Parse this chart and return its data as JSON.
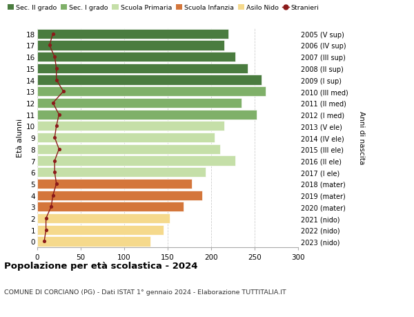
{
  "ages": [
    18,
    17,
    16,
    15,
    14,
    13,
    12,
    11,
    10,
    9,
    8,
    7,
    6,
    5,
    4,
    3,
    2,
    1,
    0
  ],
  "bar_values": [
    220,
    215,
    228,
    242,
    258,
    263,
    235,
    252,
    215,
    204,
    210,
    228,
    194,
    178,
    190,
    168,
    152,
    145,
    130
  ],
  "stranieri_values": [
    18,
    14,
    20,
    22,
    22,
    30,
    18,
    25,
    22,
    20,
    25,
    20,
    20,
    22,
    18,
    16,
    10,
    10,
    8
  ],
  "right_labels": [
    "2005 (V sup)",
    "2006 (IV sup)",
    "2007 (III sup)",
    "2008 (II sup)",
    "2009 (I sup)",
    "2010 (III med)",
    "2011 (II med)",
    "2012 (I med)",
    "2013 (V ele)",
    "2014 (IV ele)",
    "2015 (III ele)",
    "2016 (II ele)",
    "2017 (I ele)",
    "2018 (mater)",
    "2019 (mater)",
    "2020 (mater)",
    "2021 (nido)",
    "2022 (nido)",
    "2023 (nido)"
  ],
  "bar_colors": [
    "#4a7c3f",
    "#4a7c3f",
    "#4a7c3f",
    "#4a7c3f",
    "#4a7c3f",
    "#7fb069",
    "#7fb069",
    "#7fb069",
    "#c5dfa8",
    "#c5dfa8",
    "#c5dfa8",
    "#c5dfa8",
    "#c5dfa8",
    "#d4763b",
    "#d4763b",
    "#d4763b",
    "#f5d98c",
    "#f5d98c",
    "#f5d98c"
  ],
  "stranieri_color": "#8b1a1a",
  "legend_items": [
    {
      "label": "Sec. II grado",
      "color": "#4a7c3f",
      "type": "patch"
    },
    {
      "label": "Sec. I grado",
      "color": "#7fb069",
      "type": "patch"
    },
    {
      "label": "Scuola Primaria",
      "color": "#c5dfa8",
      "type": "patch"
    },
    {
      "label": "Scuola Infanzia",
      "color": "#d4763b",
      "type": "patch"
    },
    {
      "label": "Asilo Nido",
      "color": "#f5d98c",
      "type": "patch"
    },
    {
      "label": "Stranieri",
      "color": "#8b1a1a",
      "type": "line"
    }
  ],
  "ylabel": "Età alunni",
  "right_ylabel": "Anni di nascita",
  "xlim": [
    0,
    300
  ],
  "xticks": [
    0,
    50,
    100,
    150,
    200,
    250,
    300
  ],
  "title": "Popolazione per età scolastica - 2024",
  "subtitle": "COMUNE DI CORCIANO (PG) - Dati ISTAT 1° gennaio 2024 - Elaborazione TUTTITALIA.IT",
  "bg_color": "#ffffff",
  "bar_height": 0.85,
  "grid_color": "#cccccc",
  "grid_style": "--"
}
